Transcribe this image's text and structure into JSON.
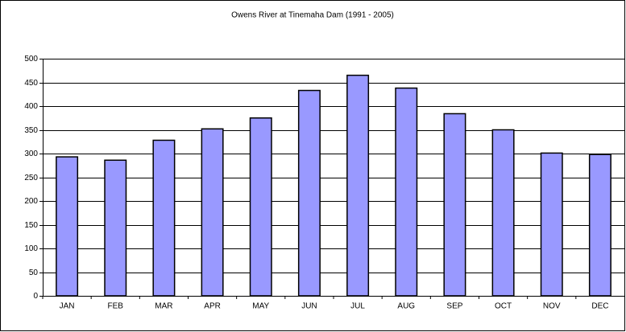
{
  "chart_data": {
    "type": "bar",
    "title": "Owens River at Tinemaha Dam (1991 - 2005)",
    "categories": [
      "JAN",
      "FEB",
      "MAR",
      "APR",
      "MAY",
      "JUN",
      "JUL",
      "AUG",
      "SEP",
      "OCT",
      "NOV",
      "DEC"
    ],
    "values": [
      293,
      286,
      328,
      352,
      375,
      433,
      465,
      438,
      384,
      350,
      301,
      298
    ],
    "color": "#9999ff",
    "ylim": [
      0,
      500
    ],
    "yticks": [
      0,
      50,
      100,
      150,
      200,
      250,
      300,
      350,
      400,
      450,
      500
    ],
    "grid": true
  }
}
